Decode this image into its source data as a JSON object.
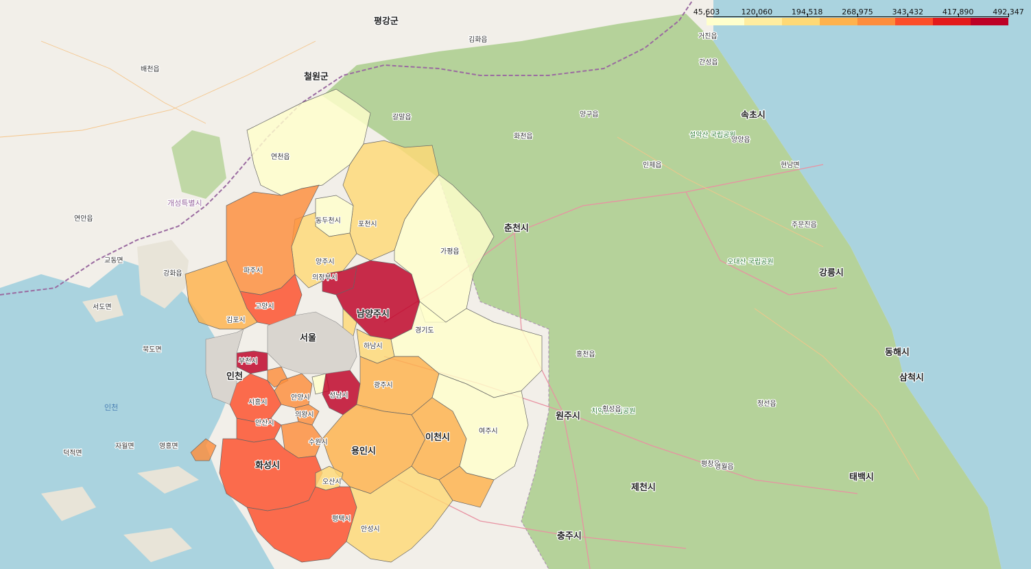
{
  "legend": {
    "ticks": [
      "45,603",
      "120,060",
      "194,518",
      "268,975",
      "343,432",
      "417,890",
      "492,347"
    ],
    "colors": [
      "#ffffcc",
      "#ffeda0",
      "#fed976",
      "#feb24c",
      "#fd8d3c",
      "#fc4e2a",
      "#e31a1c",
      "#bd0026"
    ]
  },
  "map": {
    "region_labels": {
      "seoul": "서울",
      "incheon": "인천",
      "bucheon": "부천시",
      "gimpo": "김포시",
      "goyang": "고양시",
      "paju": "파주시",
      "uijeongbu": "의정부시",
      "yangju": "양주시",
      "namyangju": "남양주시",
      "pocheon": "포천시",
      "dongducheon": "동두천시",
      "hanam": "하남시",
      "gwangju": "광주시",
      "seongnam": "성남시",
      "siheung": "시흥시",
      "ansan": "안산시",
      "anyang": "안양시",
      "uiwang": "의왕시",
      "suwon": "수원시",
      "yongin": "용인시",
      "hwaseong": "화성시",
      "osan": "오산시",
      "pyeongtaek": "평택시",
      "anseong": "안성시",
      "icheon": "이천시",
      "yeoju": "여주시",
      "gapyeong": "가평읍",
      "yeoncheon": "연천읍",
      "gyeonggi": "경기도"
    },
    "place_labels": {
      "chuncheon": "춘천시",
      "wonju": "원주시",
      "gangneung": "강릉시",
      "sokcho": "속초시",
      "donghae": "동해시",
      "samcheok": "삼척시",
      "jecheon": "제천시",
      "chungju": "충주시",
      "taebaek": "태백시",
      "hongcheon": "홍천읍",
      "cheorwon": "철원군",
      "pyeonggang": "평강군",
      "gaeseong": "개성특별시",
      "seorak": "설악산 국립공원",
      "odaesan": "오대산 국립공원",
      "chiak": "치악산국립공원",
      "incheon_sea": "인천",
      "yeongheung": "영흥면",
      "deokjeok": "덕적면",
      "jawol": "자월면",
      "ganghwa": "강화읍",
      "gyodong": "교동면",
      "seodo": "서도면",
      "bukdo": "북도면",
      "yangyang": "양양읍",
      "jumunjin": "주문진읍",
      "inje": "인제읍",
      "yanggu": "양구읍",
      "hwacheon": "화천읍",
      "hoengseong": "횡성읍",
      "pyeongchang": "평창읍",
      "jeongseon": "정선읍",
      "yeongwol": "영월읍",
      "goseong": "간성읍",
      "geojin": "거진읍",
      "sincheorwon": "갈말읍",
      "gimhwa": "김화읍",
      "hyeonnam": "현남면",
      "yeonan": "연안읍",
      "baecheon": "배천읍"
    }
  }
}
